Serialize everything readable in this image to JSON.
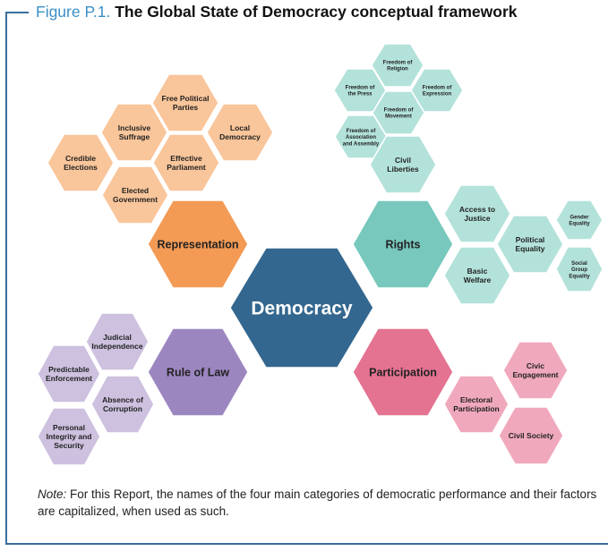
{
  "figure": {
    "label": "Figure P.1.",
    "title": "The Global State of Democracy conceptual framework"
  },
  "colors": {
    "frame": "#3a6e9e",
    "center": "#33678f",
    "representation": "#f39a55",
    "representation_light": "#f9c59a",
    "rights": "#78c8bd",
    "rights_light": "#b3e2da",
    "rule_of_law": "#9c86c0",
    "rule_of_law_light": "#cdc1df",
    "participation": "#e47291",
    "participation_light": "#f0a9bc"
  },
  "center": {
    "label": "Democracy"
  },
  "categories": {
    "representation": "Representation",
    "rights": "Rights",
    "rule_of_law": "Rule of Law",
    "participation": "Participation"
  },
  "factors": {
    "representation": {
      "free_political_parties": "Free Political Parties",
      "inclusive_suffrage": "Inclusive Suffrage",
      "local_democracy": "Local Democracy",
      "credible_elections": "Credible Elections",
      "effective_parliament": "Effective Parliament",
      "elected_government": "Elected Government"
    },
    "rights": {
      "freedom_of_religion": "Freedom of Religion",
      "freedom_of_the_press": "Freedom of the Press",
      "freedom_of_expression": "Freedom of Expression",
      "freedom_of_movement": "Freedom of Movement",
      "freedom_of_association": "Freedom of Association and Assembly",
      "civil_liberties": "Civil Liberties",
      "access_to_justice": "Access to Justice",
      "political_equality": "Political Equality",
      "basic_welfare": "Basic Welfare",
      "gender_equality": "Gender Equality",
      "social_group_equality": "Social Group Equality"
    },
    "rule_of_law": {
      "judicial_independence": "Judicial Independence",
      "predictable_enforcement": "Predictable Enforcement",
      "absence_of_corruption": "Absence of Corruption",
      "personal_integrity": "Personal Integrity and Security"
    },
    "participation": {
      "civic_engagement": "Civic Engagement",
      "electoral_participation": "Electoral Participation",
      "civil_society": "Civil Society"
    }
  },
  "note": {
    "lead": "Note:",
    "text": " For this Report, the names of the four main categories of democratic performance and their factors are capitalized, when used as such."
  }
}
